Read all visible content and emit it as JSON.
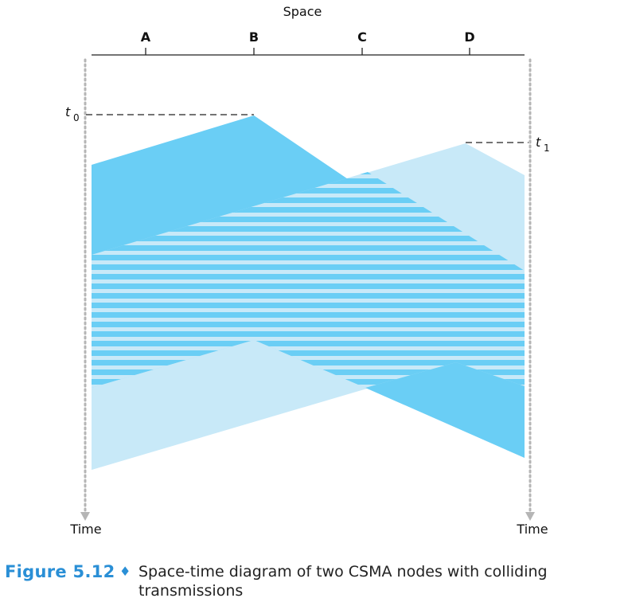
{
  "diagram": {
    "space_label": "Space",
    "nodes": [
      "A",
      "B",
      "C",
      "D"
    ],
    "time_label_left": "Time",
    "time_label_right": "Time",
    "t0_label": "t",
    "t0_sub": "0",
    "t1_label": "t",
    "t1_sub": "1",
    "colors": {
      "dark": "#6acef5",
      "light": "#c8e9f8",
      "axis": "#222222",
      "dotted": "#b5b5b5"
    }
  },
  "caption": {
    "figure": "Figure 5.12",
    "separator": "♦",
    "text": "Space-time diagram of two CSMA nodes with colliding transmissions"
  }
}
